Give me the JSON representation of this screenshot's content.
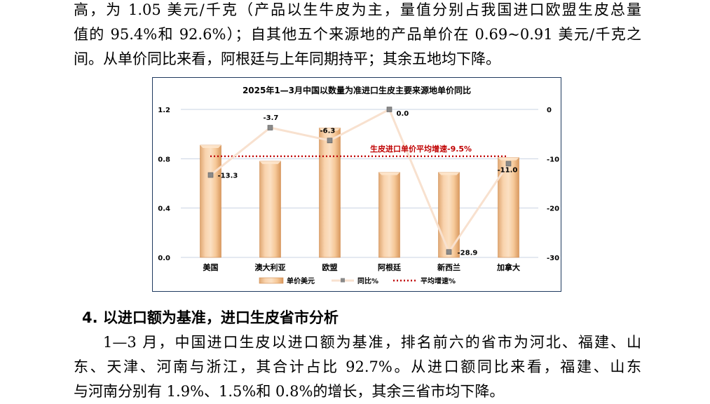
{
  "paragraph_top": {
    "lines": [
      "高，为 1.05 美元/千克（产品以生牛皮为主，量值分别占我国进口欧盟生皮总量",
      "值的 95.4%和 92.6%）；自其他五个来源地的产品单价在 0.69~0.91 美元/千克之",
      "间。从单价同比来看，阿根廷与上年同期持平；其余五地均下降。"
    ]
  },
  "section_heading": "4. 以进口额为基准，进口生皮省市分析",
  "paragraph_bottom": {
    "lines": [
      "1—3 月，中国进口生皮以进口额为基准，排名前六的省市为河北、福建、山",
      "东、天津、河南与浙江，其合计占比 92.7%。从进口额同比来看，福建、山东",
      "与河南分别有 1.9%、1.5%和 0.8%的增长，其余三省市均下降。"
    ]
  },
  "chart_data": {
    "type": "bar",
    "title": "2025年1—3月中国以数量为准进口生皮主要来源地单价同比",
    "categories": [
      "美国",
      "澳大利亚",
      "欧盟",
      "阿根廷",
      "新西兰",
      "加拿大"
    ],
    "series": [
      {
        "name": "单价美元",
        "type": "bar",
        "axis": "left",
        "values": [
          0.91,
          0.78,
          1.05,
          0.69,
          0.69,
          0.81
        ],
        "color": "#f8cba0"
      },
      {
        "name": "同比%",
        "type": "line",
        "axis": "right",
        "values": [
          -13.3,
          -3.7,
          -6.3,
          0.0,
          -28.9,
          -11.0
        ],
        "labels": [
          "-13.3",
          "-3.7",
          "-6.3",
          "0.0",
          "-28.9",
          "-11.0"
        ],
        "color": "#f8e1cf"
      },
      {
        "name": "平均增速%",
        "type": "line",
        "axis": "right",
        "value": -9.5,
        "color": "#c00000"
      }
    ],
    "annotation": "生皮进口单价平均增速-9.5%",
    "y_left": {
      "ylim": [
        0,
        1.2
      ],
      "ticks": [
        "0.0",
        "0.4",
        "0.8",
        "1.2"
      ],
      "tick_values": [
        0,
        0.4,
        0.8,
        1.2
      ]
    },
    "y_right": {
      "ylim": [
        -30,
        0
      ],
      "ticks": [
        "-30",
        "-20",
        "-10",
        "0"
      ],
      "tick_values": [
        -30,
        -20,
        -10,
        0
      ]
    },
    "grid": true,
    "legend": "bottom"
  }
}
